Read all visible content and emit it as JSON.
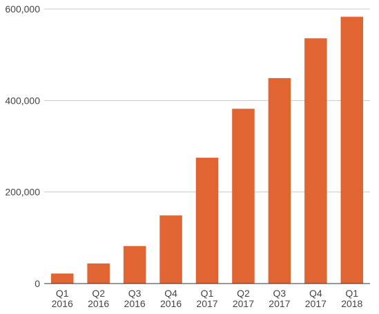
{
  "chart_data": {
    "type": "bar",
    "title": "",
    "xlabel": "",
    "ylabel": "",
    "categories": [
      [
        "Q1",
        "2016"
      ],
      [
        "Q2",
        "2016"
      ],
      [
        "Q3",
        "2016"
      ],
      [
        "Q4",
        "2016"
      ],
      [
        "Q1",
        "2017"
      ],
      [
        "Q2",
        "2017"
      ],
      [
        "Q3",
        "2017"
      ],
      [
        "Q4",
        "2017"
      ],
      [
        "Q1",
        "2018"
      ]
    ],
    "values": [
      22000,
      44000,
      82000,
      149000,
      275000,
      382000,
      449000,
      536000,
      583000
    ],
    "ylim": [
      0,
      600000
    ],
    "yticks": [
      0,
      200000,
      400000,
      600000
    ],
    "ytick_labels": [
      "0",
      "200,000",
      "400,000",
      "600,000"
    ],
    "grid": true,
    "legend": "none",
    "bar_color": "#E06533",
    "grid_color": "#c8c8c8",
    "axis_color": "#333333"
  }
}
